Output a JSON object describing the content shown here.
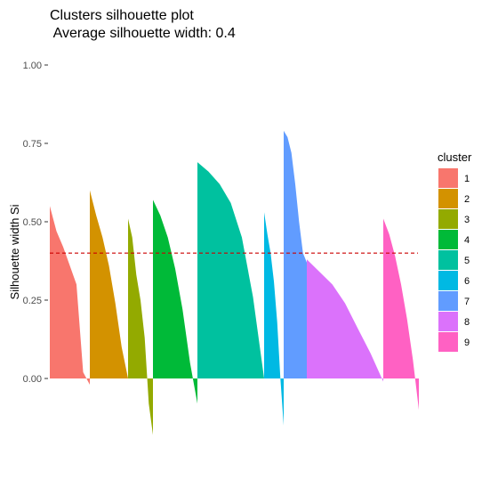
{
  "chart_data": {
    "type": "bar",
    "title": "Clusters silhouette plot",
    "subtitle": " Average silhouette width: 0.4",
    "xlabel": "",
    "ylabel": "Silhouette width Si",
    "ylim": [
      -0.2,
      1.0
    ],
    "yticks": [
      "0.00",
      "0.25",
      "0.50",
      "0.75",
      "1.00"
    ],
    "average_line": {
      "value": 0.4,
      "color": "#cc0000",
      "style": "dashed"
    },
    "grid": false,
    "legend": {
      "title": "cluster",
      "placement": "right"
    },
    "clusters": [
      {
        "name": "1",
        "color": "#F8766D",
        "profile": [
          0.55,
          0.47,
          0.42,
          0.36,
          0.3,
          0.02,
          -0.02
        ]
      },
      {
        "name": "2",
        "color": "#D39200",
        "profile": [
          0.6,
          0.52,
          0.45,
          0.36,
          0.24,
          0.1,
          0.0
        ]
      },
      {
        "name": "3",
        "color": "#93AA00",
        "profile": [
          0.51,
          0.45,
          0.33,
          0.25,
          0.13,
          -0.08,
          -0.18
        ]
      },
      {
        "name": "4",
        "color": "#00BA38",
        "profile": [
          0.57,
          0.52,
          0.45,
          0.35,
          0.22,
          0.05,
          -0.08
        ]
      },
      {
        "name": "5",
        "color": "#00C19F",
        "profile": [
          0.69,
          0.66,
          0.62,
          0.56,
          0.45,
          0.26,
          0.0
        ]
      },
      {
        "name": "6",
        "color": "#00B9E3",
        "profile": [
          0.53,
          0.46,
          0.4,
          0.31,
          0.18,
          0.0,
          -0.15
        ]
      },
      {
        "name": "7",
        "color": "#619CFF",
        "profile": [
          0.79,
          0.77,
          0.72,
          0.62,
          0.5,
          0.4,
          0.37
        ]
      },
      {
        "name": "8",
        "color": "#DB72FB",
        "profile": [
          0.38,
          0.34,
          0.3,
          0.24,
          0.16,
          0.08,
          -0.01
        ]
      },
      {
        "name": "9",
        "color": "#FF61C3",
        "profile": [
          0.51,
          0.46,
          0.39,
          0.3,
          0.19,
          0.06,
          -0.1
        ]
      }
    ]
  }
}
